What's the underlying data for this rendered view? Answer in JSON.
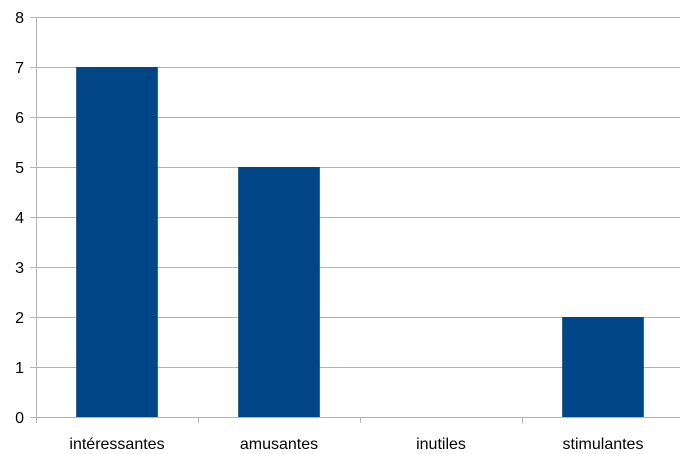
{
  "chart_data": {
    "type": "bar",
    "categories": [
      "intéressantes",
      "amusantes",
      "inutiles",
      "stimulantes"
    ],
    "values": [
      7,
      5,
      0,
      2
    ],
    "ylim": [
      0,
      8
    ],
    "yticks": [
      0,
      1,
      2,
      3,
      4,
      5,
      6,
      7,
      8
    ],
    "grid": true,
    "legend": "none",
    "bar_color": "#004586",
    "grid_color": "#b3b3b3",
    "axis_color": "#b3b3b3"
  }
}
